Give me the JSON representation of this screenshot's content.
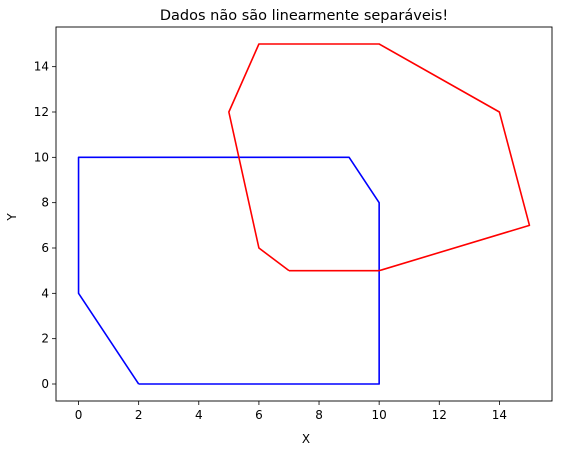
{
  "chart_data": {
    "type": "line",
    "title": "Dados não são linearmente separáveis!",
    "xlabel": "X",
    "ylabel": "Y",
    "xlim": [
      -0.75,
      15.75
    ],
    "ylim": [
      -0.75,
      15.75
    ],
    "xticks": [
      0,
      2,
      4,
      6,
      8,
      10,
      12,
      14
    ],
    "yticks": [
      0,
      2,
      4,
      6,
      8,
      10,
      12,
      14
    ],
    "grid": false,
    "series": [
      {
        "color": "#0000ff",
        "x": [
          2,
          10,
          10,
          9,
          0,
          0,
          2
        ],
        "y": [
          0,
          0,
          8,
          10,
          10,
          4,
          0
        ]
      },
      {
        "color": "#ff0000",
        "x": [
          7,
          10,
          15,
          14,
          10,
          6,
          5,
          6,
          7
        ],
        "y": [
          5,
          5,
          7,
          12,
          15,
          15,
          12,
          6,
          5
        ]
      }
    ]
  }
}
